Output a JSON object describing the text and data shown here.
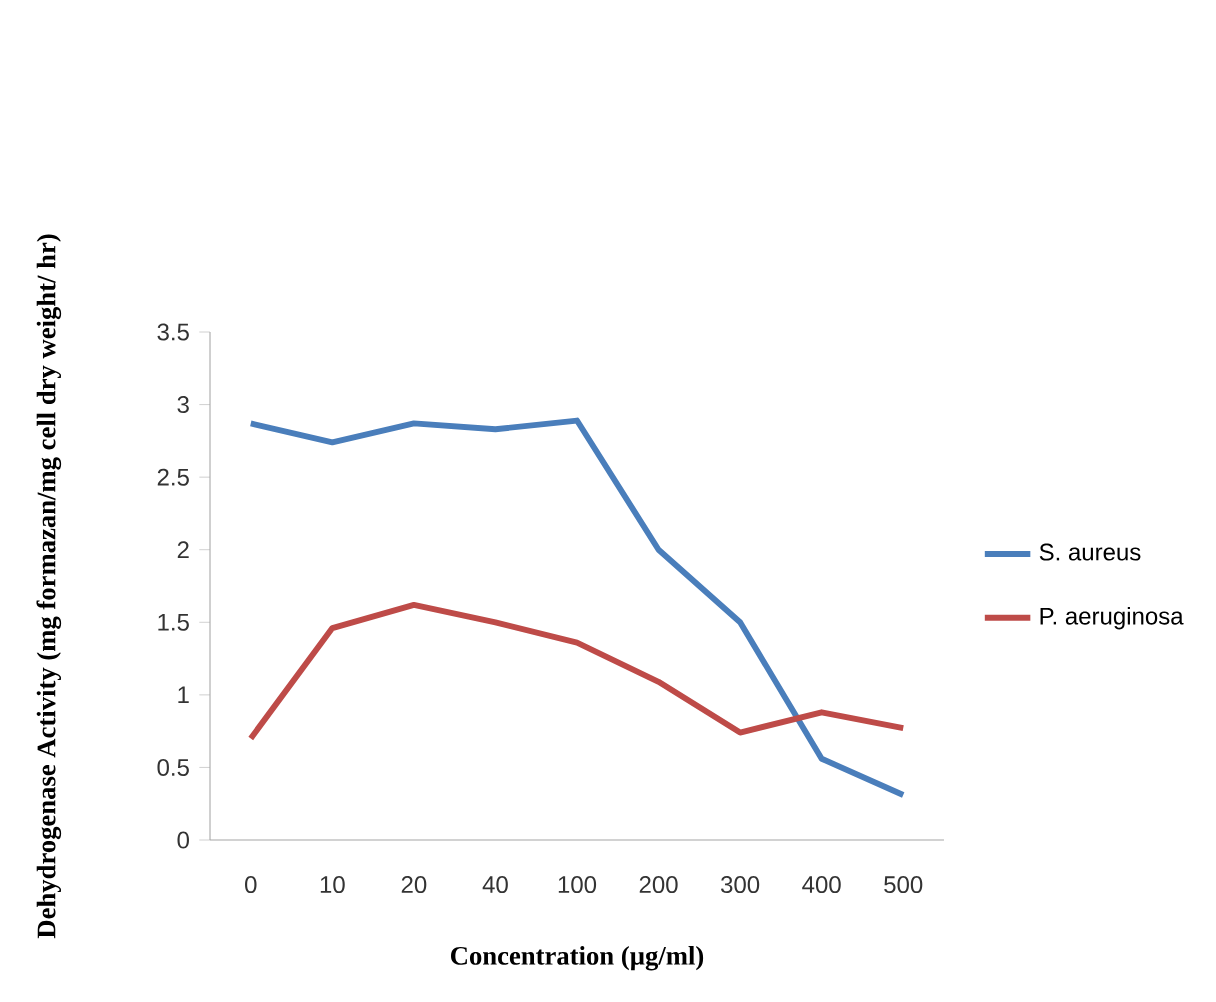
{
  "chart_data": {
    "type": "line",
    "xlabel": "Concentration (µg/ml)",
    "ylabel": "Dehydrogenase Activity (mg formazan/mg cell dry weight/ hr)",
    "categories": [
      "0",
      "10",
      "20",
      "40",
      "100",
      "200",
      "300",
      "400",
      "500"
    ],
    "series": [
      {
        "name": "S. aureus",
        "color": "#4a7ebb",
        "values": [
          2.87,
          2.74,
          2.87,
          2.83,
          2.89,
          2.0,
          1.5,
          0.56,
          0.31
        ]
      },
      {
        "name": "P. aeruginosa",
        "color": "#be4b48",
        "values": [
          0.7,
          1.46,
          1.62,
          1.5,
          1.36,
          1.09,
          0.74,
          0.88,
          0.77
        ]
      }
    ],
    "ylim": [
      0,
      3.5
    ],
    "yticks": [
      0,
      0.5,
      1,
      1.5,
      2,
      2.5,
      3,
      3.5
    ],
    "grid": false,
    "legend": "right",
    "marker": "none",
    "line_style": "solid"
  }
}
